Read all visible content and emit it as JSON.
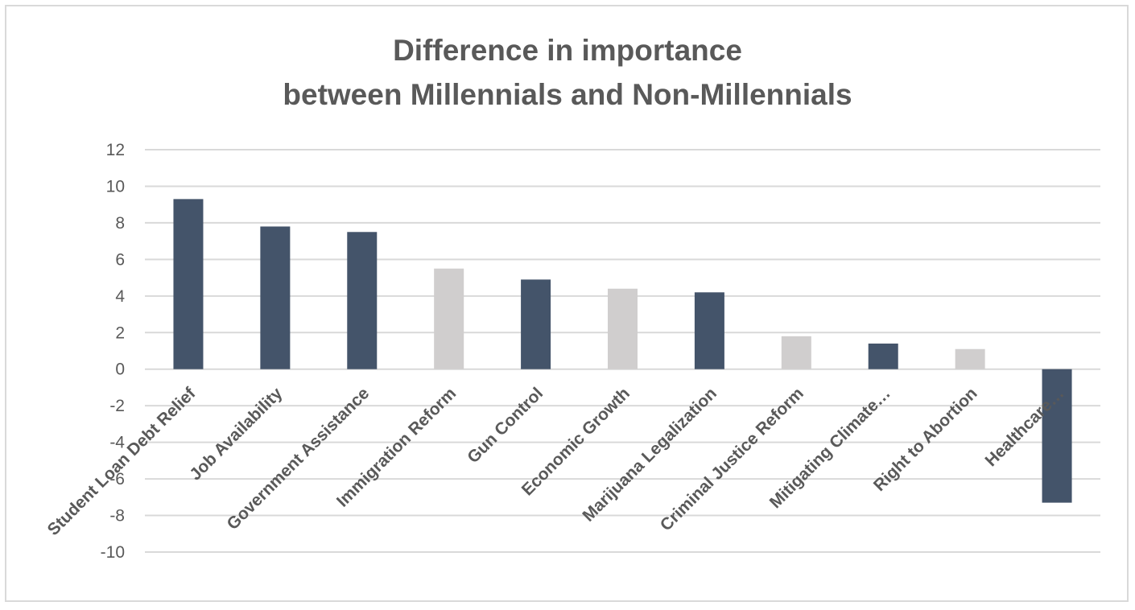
{
  "chart_data": {
    "type": "bar",
    "title_line1": "Difference in importance",
    "title_line2": "between Millennials and Non-Millennials",
    "xlabel": "",
    "ylabel": "",
    "categories": [
      "Student Loan Debt Relief",
      "Job Availability",
      "Government Assistance",
      "Immigration Reform",
      "Gun Control",
      "Economic Growth",
      "Marijuana Legalization",
      "Criminal Justice Reform",
      "Mitigating Climate…",
      "Right to Abortion",
      "Healthcare…"
    ],
    "values": [
      9.3,
      7.8,
      7.5,
      5.5,
      4.9,
      4.4,
      4.2,
      1.8,
      1.4,
      1.1,
      -7.3
    ],
    "bar_colors": [
      "#44546a",
      "#44546a",
      "#44546a",
      "#d0cece",
      "#44546a",
      "#d0cece",
      "#44546a",
      "#d0cece",
      "#44546a",
      "#d0cece",
      "#44546a"
    ],
    "ylim": [
      -10,
      12
    ],
    "yticks": [
      "12",
      "10",
      "8",
      "6",
      "4",
      "2",
      "0",
      "-2",
      "-4",
      "-6",
      "-8",
      "-10"
    ],
    "grid": true,
    "legend": "none"
  }
}
